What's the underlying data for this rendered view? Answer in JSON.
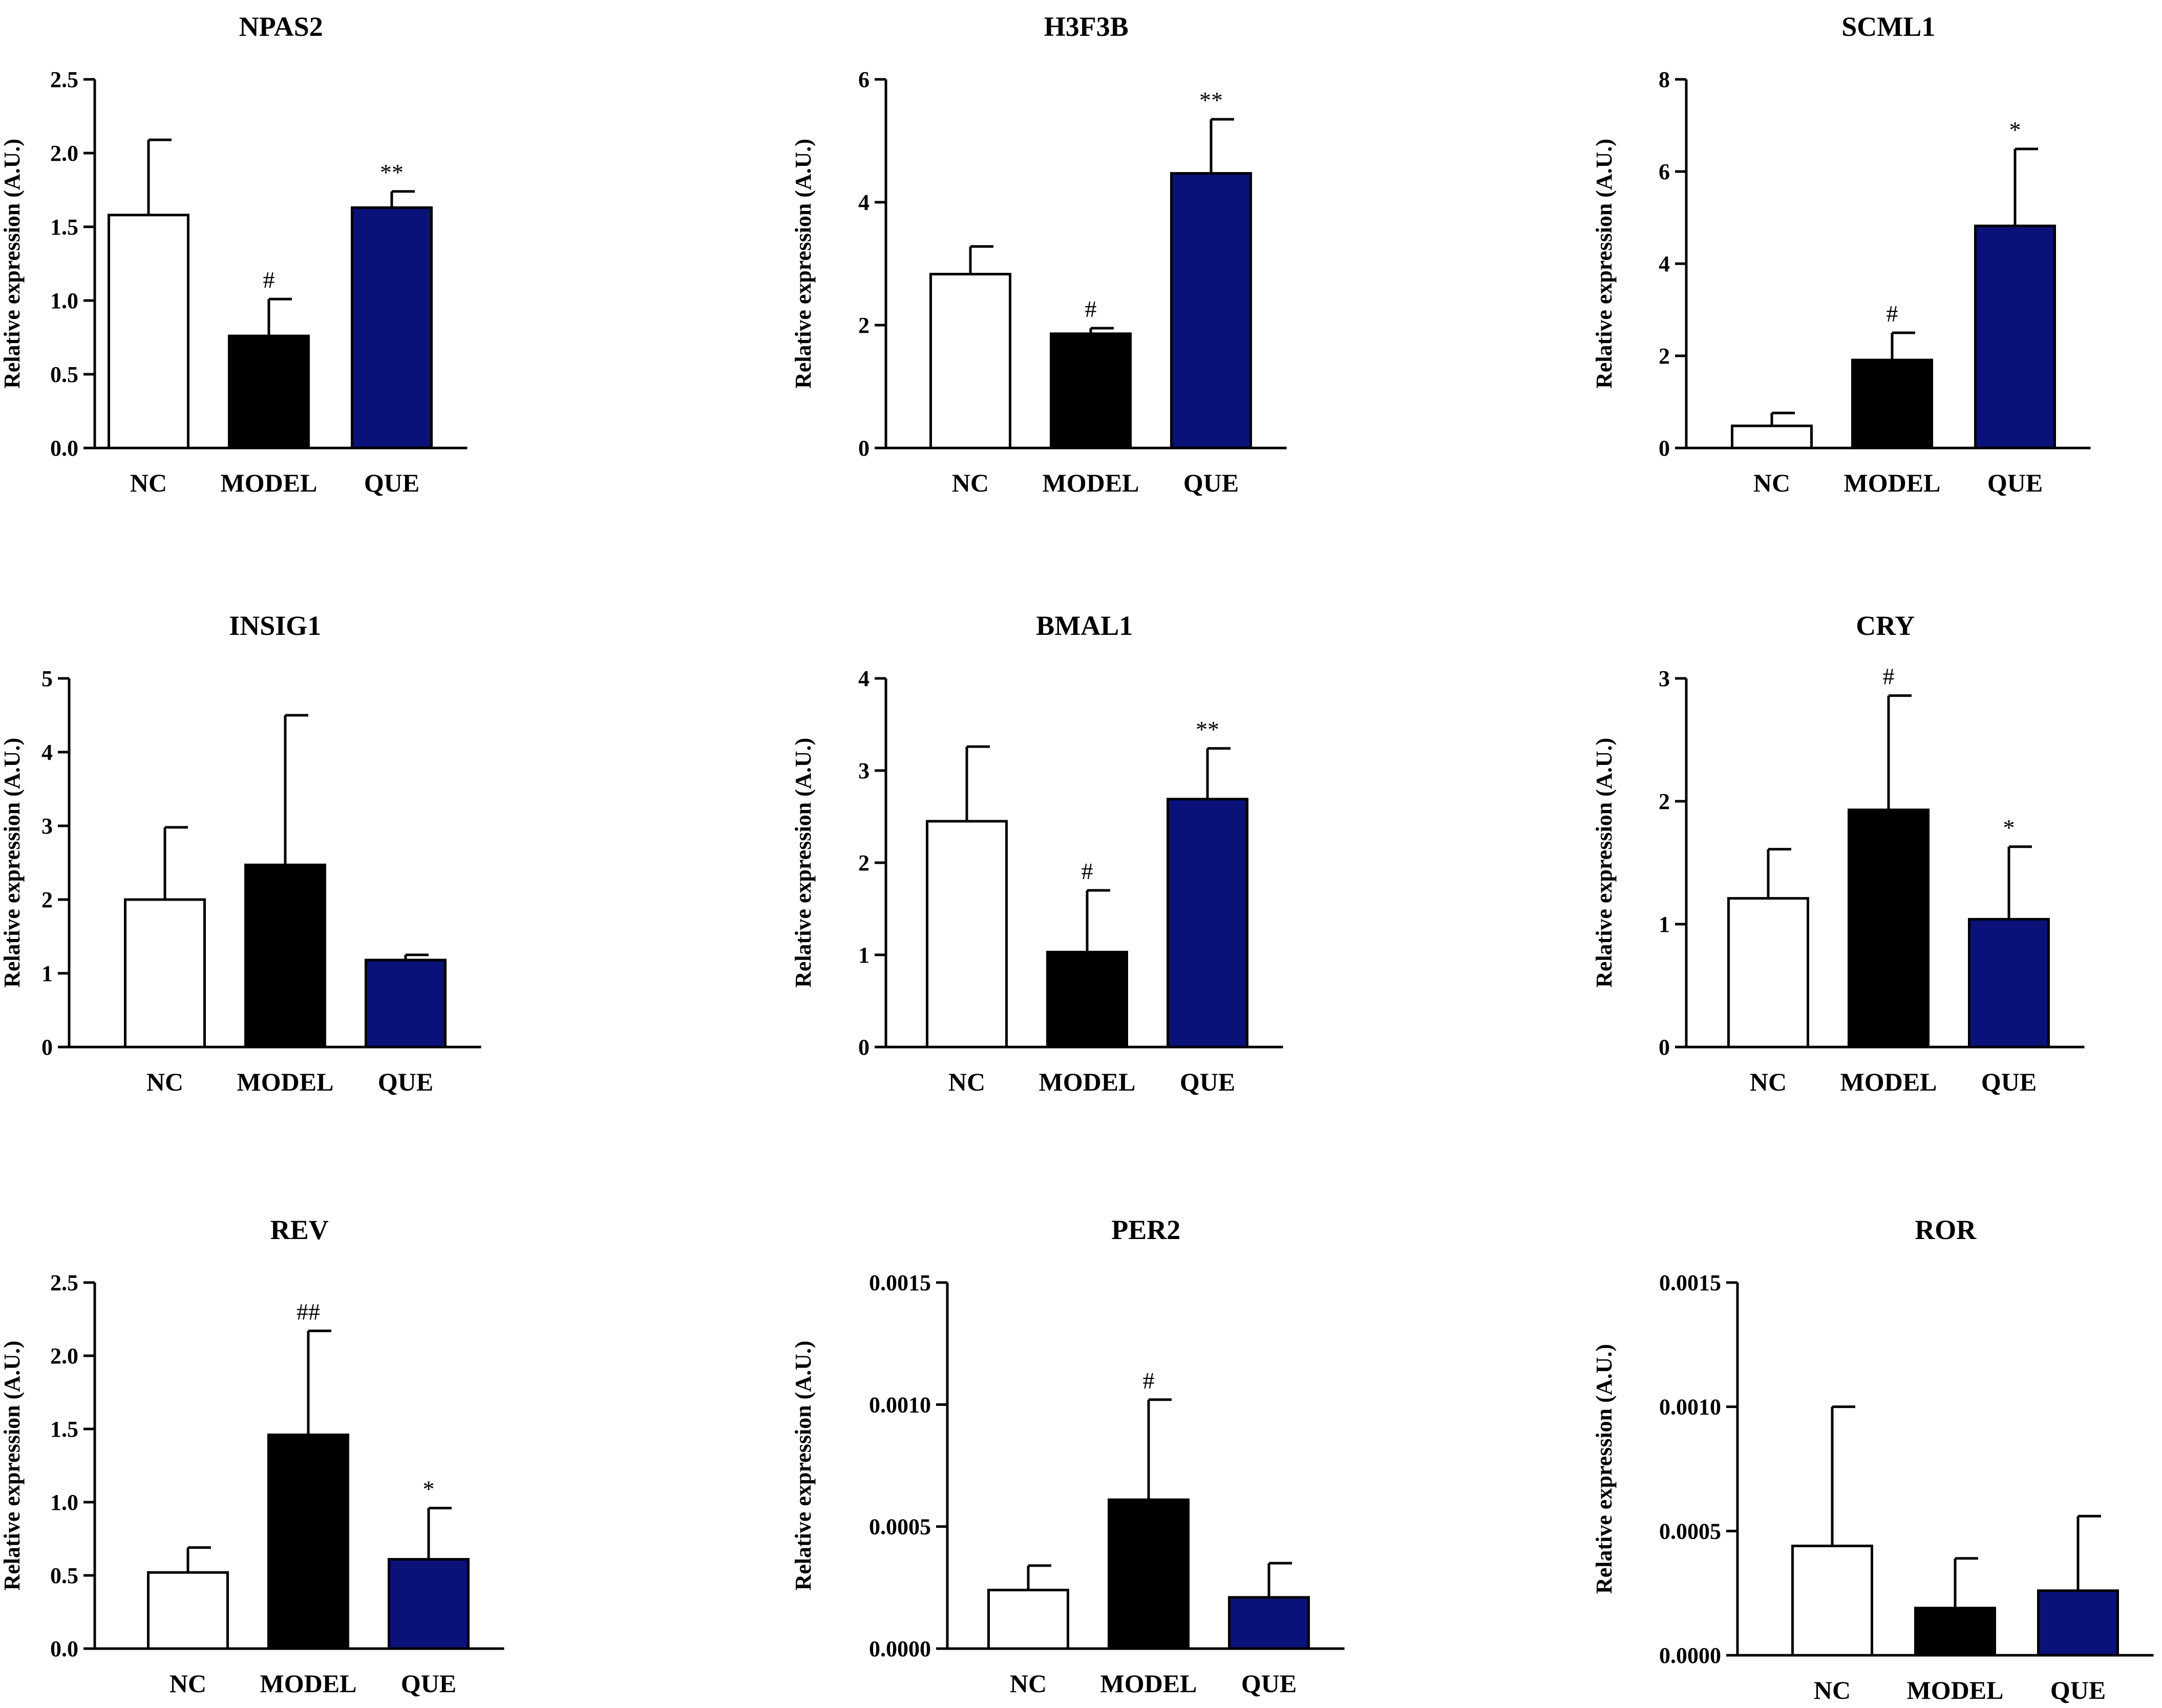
{
  "colors": {
    "NC": "#ffffff",
    "MODEL": "#000000",
    "QUE": "#0a1178",
    "stroke": "#000000"
  },
  "chart_data": [
    {
      "type": "bar",
      "title": "NPAS2",
      "ylabel": "Relative expression (A.U.)",
      "categories": [
        "NC",
        "MODEL",
        "QUE"
      ],
      "ylim": [
        0,
        2.5
      ],
      "yticks": [
        "0.0",
        "0.5",
        "1.0",
        "1.5",
        "2.0",
        "2.5"
      ],
      "values": [
        1.58,
        0.76,
        1.63
      ],
      "errors": [
        0.51,
        0.25,
        0.11
      ],
      "annotations": [
        "",
        "#",
        "**"
      ]
    },
    {
      "type": "bar",
      "title": "H3F3B",
      "ylabel": "Relative expression (A.U.)",
      "categories": [
        "NC",
        "MODEL",
        "QUE"
      ],
      "ylim": [
        0,
        6
      ],
      "yticks": [
        "0",
        "2",
        "4",
        "6"
      ],
      "values": [
        2.83,
        1.86,
        4.47
      ],
      "errors": [
        0.45,
        0.09,
        0.88
      ],
      "annotations": [
        "",
        "#",
        "**"
      ]
    },
    {
      "type": "bar",
      "title": "SCML1",
      "ylabel": "Relative expression (A.U.)",
      "categories": [
        "NC",
        "MODEL",
        "QUE"
      ],
      "ylim": [
        0,
        8
      ],
      "yticks": [
        "0",
        "2",
        "4",
        "6",
        "8"
      ],
      "values": [
        0.48,
        1.91,
        4.82
      ],
      "errors": [
        0.28,
        0.59,
        1.67
      ],
      "annotations": [
        "",
        "#",
        "*"
      ]
    },
    {
      "type": "bar",
      "title": "INSIG1",
      "ylabel": "Relative expression (A.U.)",
      "categories": [
        "NC",
        "MODEL",
        "QUE"
      ],
      "ylim": [
        0,
        5
      ],
      "yticks": [
        "0",
        "1",
        "2",
        "3",
        "4",
        "5"
      ],
      "values": [
        2.0,
        2.47,
        1.18
      ],
      "errors": [
        0.98,
        2.03,
        0.07
      ],
      "annotations": [
        "",
        "",
        ""
      ]
    },
    {
      "type": "bar",
      "title": "BMAL1",
      "ylabel": "Relative expression (A.U.)",
      "categories": [
        "NC",
        "MODEL",
        "QUE"
      ],
      "ylim": [
        0,
        4
      ],
      "yticks": [
        "0",
        "1",
        "2",
        "3",
        "4"
      ],
      "values": [
        2.45,
        1.03,
        2.69
      ],
      "errors": [
        0.81,
        0.67,
        0.55
      ],
      "annotations": [
        "",
        "#",
        "**"
      ]
    },
    {
      "type": "bar",
      "title": "CRY",
      "ylabel": "Relative expression (A.U.)",
      "categories": [
        "NC",
        "MODEL",
        "QUE"
      ],
      "ylim": [
        0,
        3
      ],
      "yticks": [
        "0",
        "1",
        "2",
        "3"
      ],
      "values": [
        1.21,
        1.93,
        1.04
      ],
      "errors": [
        0.4,
        0.93,
        0.59
      ],
      "annotations": [
        "",
        "#",
        "*"
      ]
    },
    {
      "type": "bar",
      "title": "REV",
      "ylabel": "Relative expression (A.U.)",
      "categories": [
        "NC",
        "MODEL",
        "QUE"
      ],
      "ylim": [
        0,
        2.5
      ],
      "yticks": [
        "0.0",
        "0.5",
        "1.0",
        "1.5",
        "2.0",
        "2.5"
      ],
      "values": [
        0.52,
        1.46,
        0.61
      ],
      "errors": [
        0.17,
        0.71,
        0.35
      ],
      "annotations": [
        "",
        "##",
        "*"
      ]
    },
    {
      "type": "bar",
      "title": "PER2",
      "ylabel": "Relative expression (A.U.)",
      "categories": [
        "NC",
        "MODEL",
        "QUE"
      ],
      "ylim": [
        0,
        0.0015
      ],
      "yticks": [
        "0.0000",
        "0.0005",
        "0.0010",
        "0.0015"
      ],
      "values": [
        0.00024,
        0.00061,
        0.00021
      ],
      "errors": [
        0.0001,
        0.00041,
        0.00014
      ],
      "annotations": [
        "",
        "#",
        ""
      ]
    },
    {
      "type": "bar",
      "title": "ROR",
      "ylabel": "Relative expression (A.U.)",
      "categories": [
        "NC",
        "MODEL",
        "QUE"
      ],
      "ylim": [
        0,
        0.0015
      ],
      "yticks": [
        "0.0000",
        "0.0005",
        "0.0010",
        "0.0015"
      ],
      "values": [
        0.00044,
        0.00019,
        0.00026
      ],
      "errors": [
        0.00056,
        0.0002,
        0.0003
      ],
      "annotations": [
        "",
        "",
        ""
      ]
    }
  ]
}
